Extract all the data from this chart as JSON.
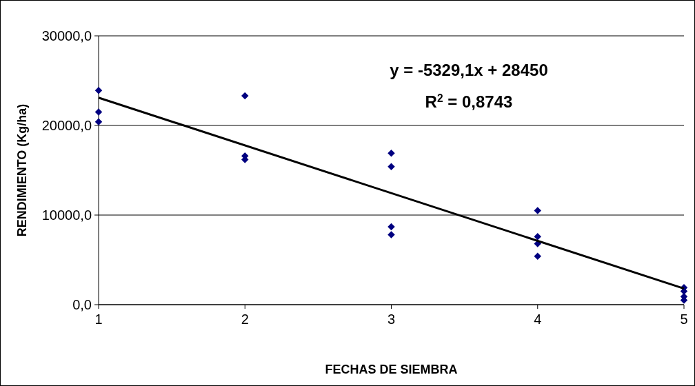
{
  "chart_data": {
    "type": "scatter",
    "xlabel": "FECHAS DE SIEMBRA",
    "ylabel": "RENDIMIENTO (Kg/ha)",
    "xlim": [
      1,
      5
    ],
    "xticks": [
      1,
      2,
      3,
      4,
      5
    ],
    "ylim": [
      0,
      30000
    ],
    "yticks": [
      {
        "value": 0,
        "label": "0,0"
      },
      {
        "value": 10000,
        "label": "10000,0"
      },
      {
        "value": 20000,
        "label": "20000,0"
      },
      {
        "value": 30000,
        "label": "30000,0"
      }
    ],
    "grid": "y",
    "series": [
      {
        "color": "#000080",
        "marker": "diamond",
        "x": [
          1,
          1,
          1,
          2,
          2,
          2,
          3,
          3,
          3,
          3,
          4,
          4,
          4,
          4,
          5,
          5,
          5,
          5
        ],
        "values": [
          23900,
          21500,
          20400,
          23300,
          16600,
          16200,
          16900,
          15400,
          8700,
          7800,
          10500,
          7600,
          6800,
          5400,
          1900,
          1500,
          900,
          500
        ]
      },
      {
        "type": "line",
        "color": "#000000",
        "line_style": "solid",
        "marker": "none",
        "x": [
          1,
          5
        ],
        "values": [
          23100,
          1800
        ]
      }
    ],
    "annotations": [
      "y = -5329,1x + 28450",
      "R$^{2}$ = 0,8743"
    ]
  }
}
